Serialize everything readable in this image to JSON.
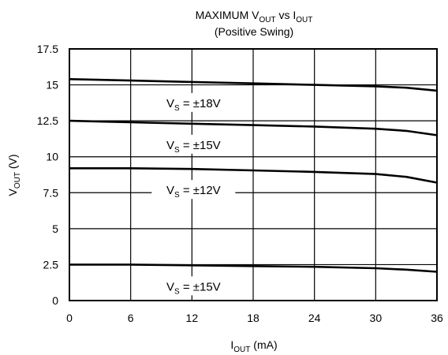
{
  "chart_data": {
    "type": "line",
    "title": {
      "line1": {
        "prefix": "MAXIMUM V",
        "sub1": "OUT",
        "mid": " vs I",
        "sub2": "OUT"
      },
      "line2": "(Positive Swing)"
    },
    "xlabel": {
      "main": "I",
      "sub": "OUT",
      "rest": " (mA)"
    },
    "ylabel": {
      "main": "V",
      "sub": "OUT",
      "rest": " (V)"
    },
    "xlim": [
      0,
      36
    ],
    "ylim": [
      0,
      17.5
    ],
    "x_ticks": [
      "0",
      "6",
      "12",
      "18",
      "24",
      "30",
      "36"
    ],
    "y_ticks": [
      "0",
      "2.5",
      "5",
      "7.5",
      "10",
      "12.5",
      "15",
      "17.5"
    ],
    "grid": true,
    "series": [
      {
        "name": "V_S = ±18V",
        "label": {
          "main": "V",
          "sub": "S",
          "rest": " = ±18V"
        },
        "x": [
          0,
          6,
          12,
          18,
          24,
          30,
          33,
          36
        ],
        "y": [
          15.4,
          15.3,
          15.2,
          15.1,
          15.0,
          14.9,
          14.8,
          14.6
        ]
      },
      {
        "name": "V_S = ±15V",
        "label": {
          "main": "V",
          "sub": "S",
          "rest": " = ±15V"
        },
        "x": [
          0,
          6,
          12,
          18,
          24,
          30,
          33,
          36
        ],
        "y": [
          12.5,
          12.4,
          12.3,
          12.2,
          12.1,
          11.95,
          11.8,
          11.5
        ]
      },
      {
        "name": "V_S = ±12V",
        "label": {
          "main": "V",
          "sub": "S",
          "rest": " = ±12V"
        },
        "x": [
          0,
          6,
          12,
          18,
          24,
          30,
          33,
          36
        ],
        "y": [
          9.2,
          9.2,
          9.15,
          9.05,
          8.95,
          8.8,
          8.6,
          8.2
        ]
      },
      {
        "name": "V_S = ±15V",
        "label": {
          "main": "V",
          "sub": "S",
          "rest": " = ±15V"
        },
        "x": [
          0,
          6,
          12,
          18,
          24,
          30,
          33,
          36
        ],
        "y": [
          2.5,
          2.5,
          2.45,
          2.4,
          2.35,
          2.25,
          2.15,
          2.0
        ]
      }
    ]
  }
}
